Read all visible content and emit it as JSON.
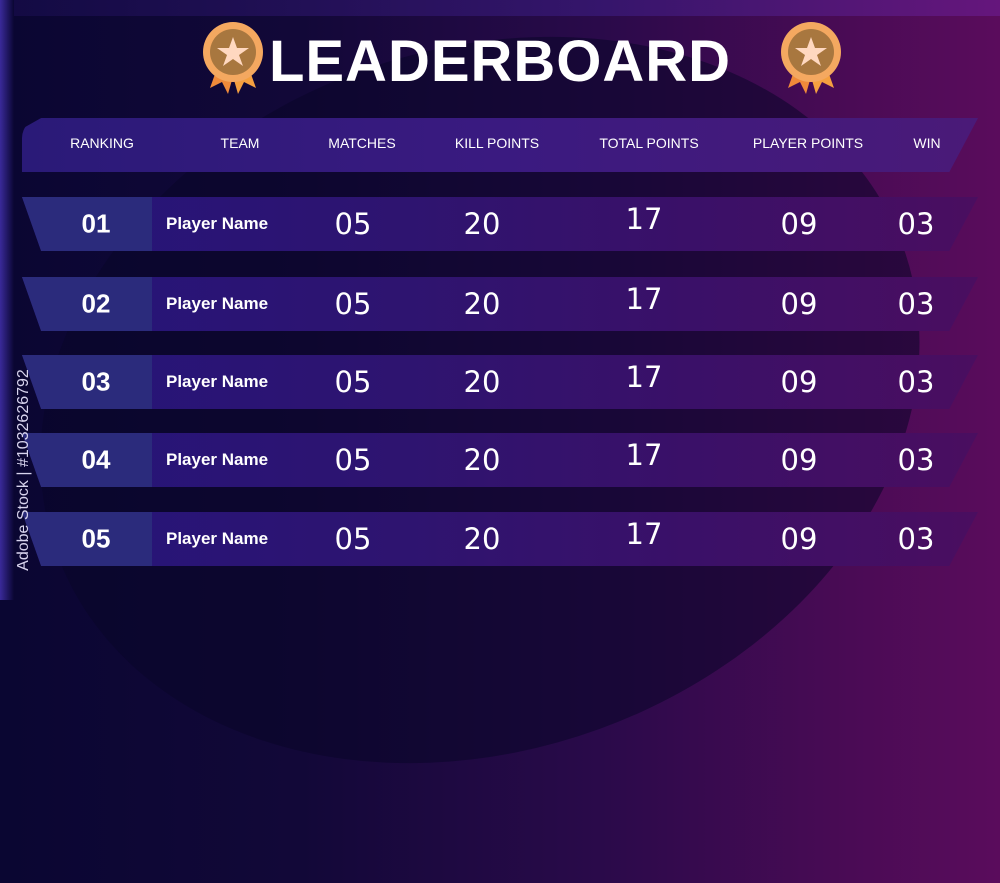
{
  "title": "LEADERBOARD",
  "icons": {
    "left": "medal-star-icon",
    "right": "medal-star-icon"
  },
  "columns": [
    "RANKING",
    "TEAM",
    "MATCHES",
    "KILL POINTS",
    "TOTAL POINTS",
    "PLAYER POINTS",
    "WIN"
  ],
  "rows": [
    {
      "rank": "01",
      "team": "Player Name",
      "matches": "05",
      "kill_points": "20",
      "total_points": "17",
      "player_points": "09",
      "win": "03"
    },
    {
      "rank": "02",
      "team": "Player Name",
      "matches": "05",
      "kill_points": "20",
      "total_points": "17",
      "player_points": "09",
      "win": "03"
    },
    {
      "rank": "03",
      "team": "Player Name",
      "matches": "05",
      "kill_points": "20",
      "total_points": "17",
      "player_points": "09",
      "win": "03"
    },
    {
      "rank": "04",
      "team": "Player Name",
      "matches": "05",
      "kill_points": "20",
      "total_points": "17",
      "player_points": "09",
      "win": "03"
    },
    {
      "rank": "05",
      "team": "Player Name",
      "matches": "05",
      "kill_points": "20",
      "total_points": "17",
      "player_points": "09",
      "win": "03"
    }
  ],
  "watermark": "Adobe Stock | #1032626792",
  "colors": {
    "background_left": "#0a0632",
    "background_right": "#5a0c5c",
    "rank_cell": "#2b2b7c",
    "medal": "#b07a45"
  }
}
